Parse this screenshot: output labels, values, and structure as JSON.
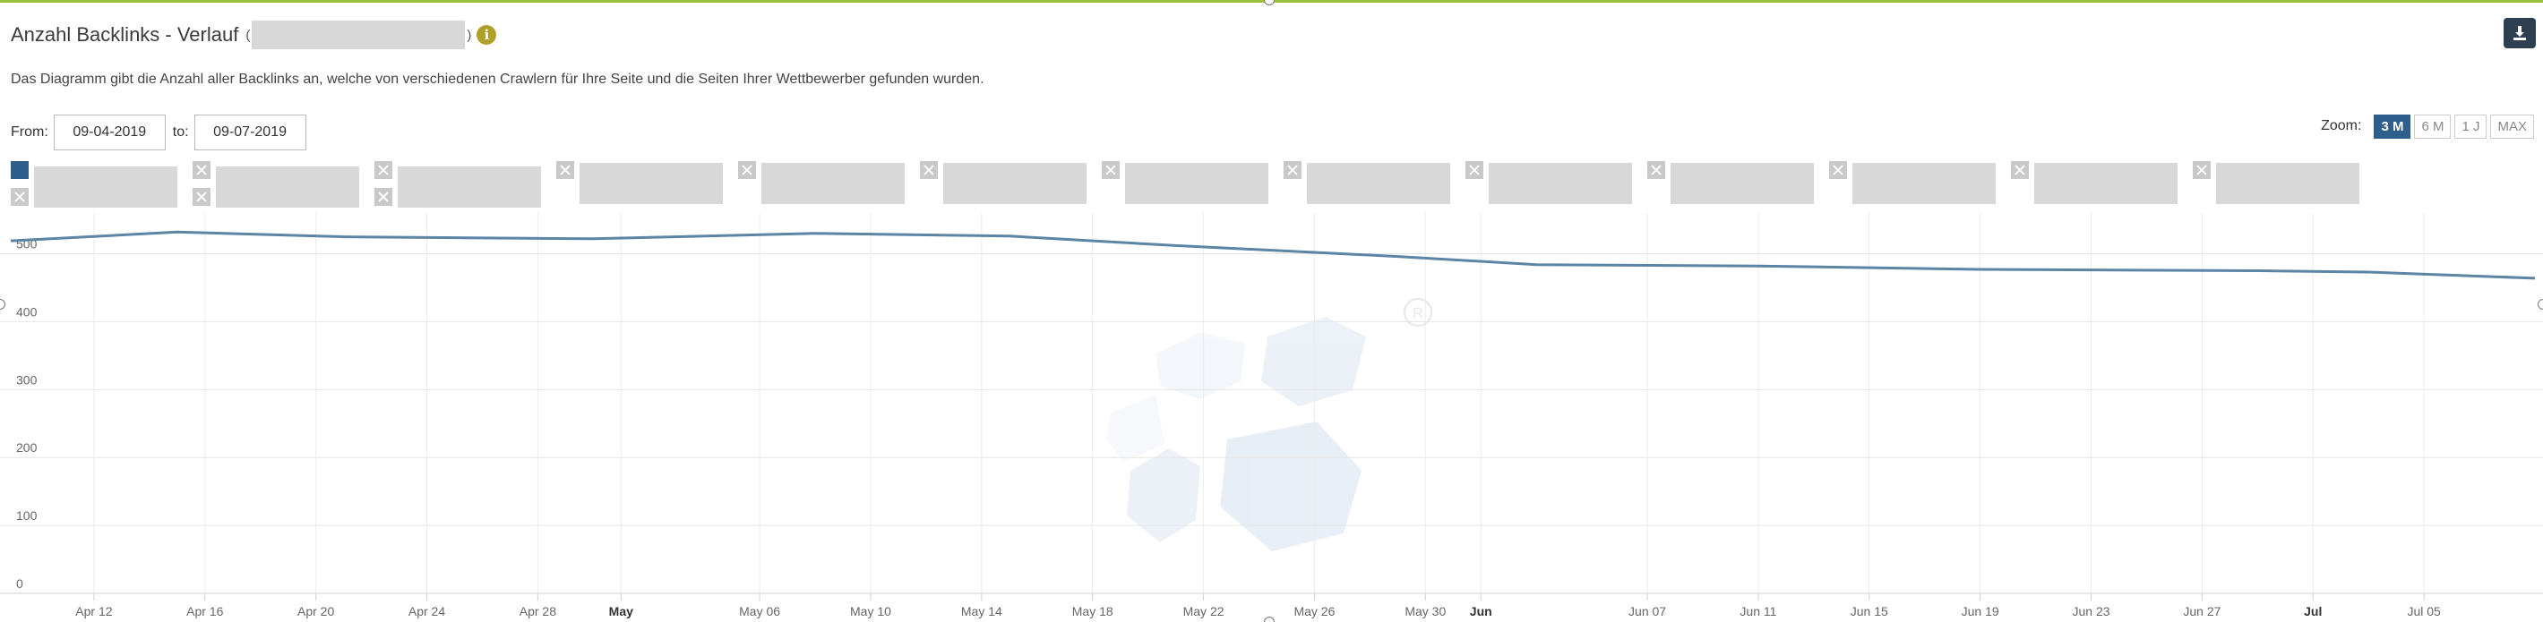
{
  "header": {
    "title": "Anzahl Backlinks - Verlauf",
    "title_open_paren": "(",
    "title_close_paren": ")",
    "info_icon": "info-icon",
    "download_icon": "download-icon"
  },
  "description": "Das Diagramm gibt die Anzahl aller Backlinks an, welche von verschiedenen Crawlern für Ihre Seite und die Seiten Ihrer Wettbewerber gefunden wurden.",
  "date_range": {
    "from_label": "From:",
    "from_value": "09-04-2019",
    "to_label": "to:",
    "to_value": "09-07-2019"
  },
  "zoom": {
    "label": "Zoom:",
    "options": [
      "3 M",
      "6 M",
      "1 J",
      "MAX"
    ],
    "active": "3 M"
  },
  "colors": {
    "series_line": "#5b84a5",
    "active_accent": "#2e5f8c",
    "info_icon": "#b1a028",
    "download_button": "#2f3f52",
    "top_rule": "#9bc03b"
  },
  "chart_data": {
    "type": "line",
    "y_ticks": [
      0,
      100,
      200,
      300,
      400,
      500
    ],
    "ylim": [
      0,
      560
    ],
    "x_ticks": [
      {
        "label": "Apr 12",
        "date": "2019-04-12",
        "bold": false
      },
      {
        "label": "Apr 16",
        "date": "2019-04-16",
        "bold": false
      },
      {
        "label": "Apr 20",
        "date": "2019-04-20",
        "bold": false
      },
      {
        "label": "Apr 24",
        "date": "2019-04-24",
        "bold": false
      },
      {
        "label": "Apr 28",
        "date": "2019-04-28",
        "bold": false
      },
      {
        "label": "May",
        "date": "2019-05-01",
        "bold": true
      },
      {
        "label": "May 06",
        "date": "2019-05-06",
        "bold": false
      },
      {
        "label": "May 10",
        "date": "2019-05-10",
        "bold": false
      },
      {
        "label": "May 14",
        "date": "2019-05-14",
        "bold": false
      },
      {
        "label": "May 18",
        "date": "2019-05-18",
        "bold": false
      },
      {
        "label": "May 22",
        "date": "2019-05-22",
        "bold": false
      },
      {
        "label": "May 26",
        "date": "2019-05-26",
        "bold": false
      },
      {
        "label": "May 30",
        "date": "2019-05-30",
        "bold": false
      },
      {
        "label": "Jun",
        "date": "2019-06-01",
        "bold": true
      },
      {
        "label": "Jun 07",
        "date": "2019-06-07",
        "bold": false
      },
      {
        "label": "Jun 11",
        "date": "2019-06-11",
        "bold": false
      },
      {
        "label": "Jun 15",
        "date": "2019-06-15",
        "bold": false
      },
      {
        "label": "Jun 19",
        "date": "2019-06-19",
        "bold": false
      },
      {
        "label": "Jun 23",
        "date": "2019-06-23",
        "bold": false
      },
      {
        "label": "Jun 27",
        "date": "2019-06-27",
        "bold": false
      },
      {
        "label": "Jul",
        "date": "2019-07-01",
        "bold": true
      },
      {
        "label": "Jul 05",
        "date": "2019-07-05",
        "bold": false
      }
    ],
    "xlim": [
      "2019-04-09",
      "2019-07-09"
    ],
    "series": [
      {
        "points": [
          {
            "date": "2019-04-09",
            "value": 519
          },
          {
            "date": "2019-04-15",
            "value": 532
          },
          {
            "date": "2019-04-21",
            "value": 525
          },
          {
            "date": "2019-04-30",
            "value": 522
          },
          {
            "date": "2019-05-08",
            "value": 530
          },
          {
            "date": "2019-05-15",
            "value": 526
          },
          {
            "date": "2019-05-21",
            "value": 512
          },
          {
            "date": "2019-05-29",
            "value": 496
          },
          {
            "date": "2019-06-03",
            "value": 484
          },
          {
            "date": "2019-06-11",
            "value": 482
          },
          {
            "date": "2019-06-19",
            "value": 477
          },
          {
            "date": "2019-06-29",
            "value": 475
          },
          {
            "date": "2019-07-03",
            "value": 473
          },
          {
            "date": "2019-07-09",
            "value": 464
          }
        ]
      }
    ],
    "legend": {
      "placement": "top-left",
      "items": [
        {
          "state": "active",
          "redacted": true
        },
        {
          "state": "hidden",
          "redacted": true
        },
        {
          "state": "hidden",
          "redacted": true
        },
        {
          "state": "hidden",
          "redacted": true
        },
        {
          "state": "hidden",
          "redacted": true
        },
        {
          "state": "hidden",
          "redacted": true
        },
        {
          "state": "hidden",
          "redacted": true
        },
        {
          "state": "hidden",
          "redacted": true
        },
        {
          "state": "hidden",
          "redacted": true
        },
        {
          "state": "hidden",
          "redacted": true
        },
        {
          "state": "hidden",
          "redacted": true
        },
        {
          "state": "hidden",
          "redacted": true
        },
        {
          "state": "hidden",
          "redacted": true
        }
      ]
    },
    "grid": true,
    "watermark_icon": "registered-logo-watermark"
  }
}
